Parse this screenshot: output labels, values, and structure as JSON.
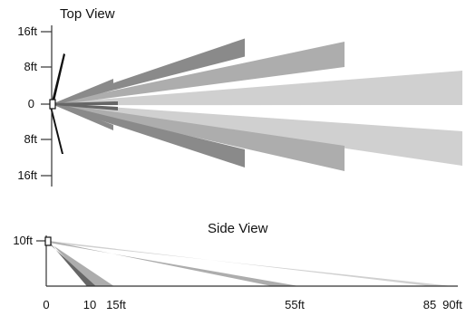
{
  "colors": {
    "axis": "#333333",
    "light": "#d0d0d0",
    "medium": "#adadad",
    "dark": "#8a8a8a",
    "darkest": "#666666",
    "black": "#111111"
  },
  "top_view": {
    "title": "Top View",
    "y_ticks": [
      {
        "label": "16ft",
        "value": 16
      },
      {
        "label": "8ft",
        "value": 8
      },
      {
        "label": "0",
        "value": 0
      },
      {
        "label": "8ft",
        "value": -8
      },
      {
        "label": "16ft",
        "value": -16
      }
    ],
    "beams": [
      {
        "name": "far-upper",
        "range_ft": 90,
        "center_ft": 3.6,
        "shade": "light"
      },
      {
        "name": "far-lower",
        "range_ft": 90,
        "center_ft": -9.8,
        "shade": "light"
      },
      {
        "name": "mid-upper",
        "range_ft": 64,
        "center_ft": 11,
        "shade": "medium"
      },
      {
        "name": "mid-lower",
        "range_ft": 64,
        "center_ft": -12,
        "shade": "medium"
      },
      {
        "name": "near-upper",
        "range_ft": 42,
        "center_ft": 12.5,
        "shade": "dark"
      },
      {
        "name": "near-lower",
        "range_ft": 42,
        "center_ft": -12,
        "shade": "dark"
      },
      {
        "name": "short-upper",
        "range_ft": 13,
        "center_ft": 5,
        "shade": "dark"
      },
      {
        "name": "short-lower",
        "range_ft": 13,
        "center_ft": -5.2,
        "shade": "dark"
      }
    ]
  },
  "side_view": {
    "title": "Side View",
    "y_tick": {
      "label": "10ft",
      "value": 10
    },
    "x_ticks": [
      {
        "label": "0",
        "value": 0
      },
      {
        "label": "10",
        "value": 10
      },
      {
        "label": "15ft",
        "value": 15
      },
      {
        "label": "55ft",
        "value": 55
      },
      {
        "label": "85",
        "value": 85
      },
      {
        "label": "90ft",
        "value": 90
      }
    ],
    "beams": [
      {
        "name": "floor-85-90",
        "from_ft": 85,
        "to_ft": 90,
        "shade": "light"
      },
      {
        "name": "floor-55",
        "from_ft": 50,
        "to_ft": 56,
        "shade": "medium"
      },
      {
        "name": "floor-10-15",
        "from_ft": 10,
        "to_ft": 15,
        "shade": "medium"
      }
    ]
  }
}
